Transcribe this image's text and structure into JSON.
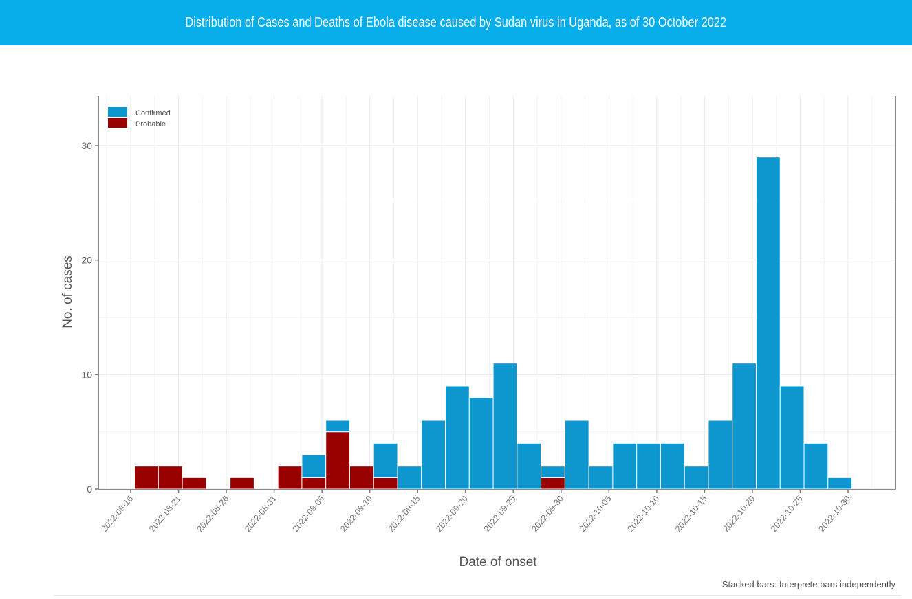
{
  "header": {
    "title": "Distribution of Cases and Deaths of Ebola disease caused by Sudan virus in Uganda, as of 30 October 2022"
  },
  "colors": {
    "banner": "#08aeea",
    "confirmed": "#0e97cf",
    "probable": "#990000"
  },
  "chart_data": {
    "type": "bar",
    "stacked": true,
    "title": "Distribution of Cases and Deaths of Ebola disease caused by Sudan virus in Uganda, as of 30 October 2022",
    "xlabel": "Date of onset",
    "ylabel": "No. of cases",
    "ylim": [
      0,
      33
    ],
    "yticks": [
      0,
      10,
      20,
      30
    ],
    "xticks": [
      "2022-08-16",
      "2022-08-21",
      "2022-08-26",
      "2022-08-31",
      "2022-09-05",
      "2022-09-10",
      "2022-09-15",
      "2022-09-20",
      "2022-09-25",
      "2022-09-30",
      "2022-10-05",
      "2022-10-10",
      "2022-10-15",
      "2022-10-20",
      "2022-10-25",
      "2022-10-30"
    ],
    "bin_days": 2.5,
    "bins_start_offset_days": 0.4,
    "grid": true,
    "legend": {
      "position": "top-left",
      "entries": [
        "Confirmed",
        "Probable"
      ]
    },
    "note": "Stacked bars: Interprete bars independently",
    "series": [
      {
        "name": "Probable",
        "values": [
          2,
          2,
          1,
          0,
          1,
          0,
          2,
          1,
          5,
          2,
          1,
          0,
          0,
          0,
          0,
          0,
          0,
          1,
          0,
          0,
          0,
          0,
          0,
          0,
          0,
          0,
          0,
          0,
          0,
          0
        ]
      },
      {
        "name": "Confirmed",
        "values": [
          0,
          0,
          0,
          0,
          0,
          0,
          0,
          2,
          1,
          0,
          3,
          2,
          6,
          9,
          8,
          11,
          4,
          1,
          6,
          2,
          4,
          4,
          4,
          2,
          6,
          11,
          29,
          9,
          4,
          1
        ]
      }
    ]
  }
}
